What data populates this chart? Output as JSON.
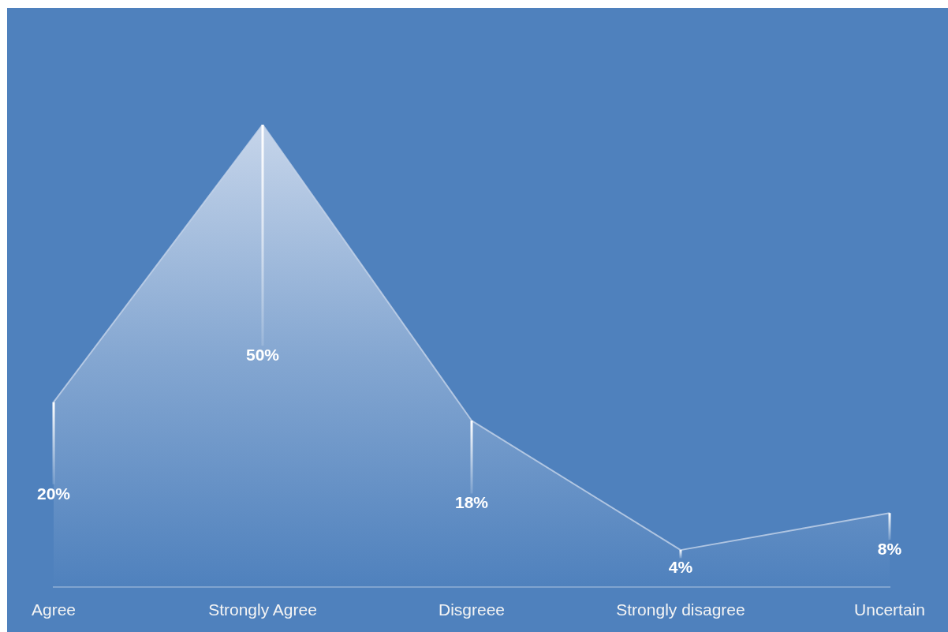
{
  "chart_data": {
    "type": "area",
    "categories": [
      "Agree",
      "Strongly Agree",
      "Disgreee",
      "Strongly disagree",
      "Uncertain"
    ],
    "series": [
      {
        "color": "#c6d5ea",
        "values": [
          20,
          50,
          18,
          4,
          8
        ],
        "value_labels": [
          "20%",
          "50%",
          "18%",
          "4%",
          "8%"
        ]
      }
    ],
    "tick_labels": "x",
    "grid": false,
    "legend": false,
    "marker": "none"
  }
}
